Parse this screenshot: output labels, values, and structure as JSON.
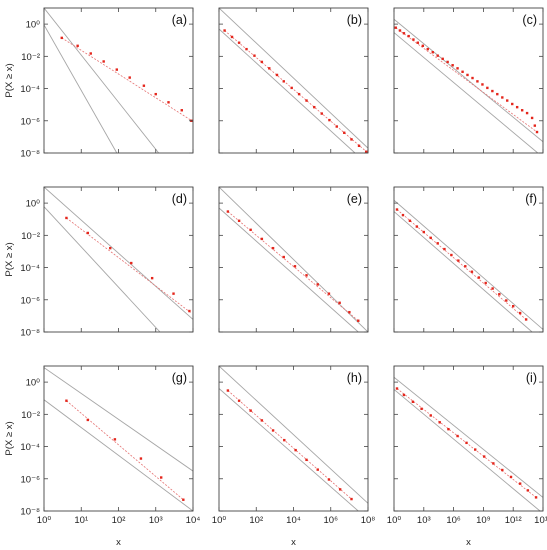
{
  "chart_data": [
    {
      "panel": "(a)",
      "type": "scatter",
      "xscale": "log",
      "yscale": "log",
      "x_exp_range": [
        0,
        4
      ],
      "y_exp_range": [
        -8,
        1
      ],
      "xticks_exp": [
        0,
        1,
        2,
        3,
        4
      ],
      "yticks_exp": [
        0,
        -2,
        -4,
        -6,
        -8
      ],
      "points": [
        {
          "x": 3,
          "y": 0.14
        },
        {
          "x": 8,
          "y": 0.045
        },
        {
          "x": 18,
          "y": 0.015
        },
        {
          "x": 40,
          "y": 0.0048
        },
        {
          "x": 90,
          "y": 0.0015
        },
        {
          "x": 200,
          "y": 0.00048
        },
        {
          "x": 480,
          "y": 0.00015
        },
        {
          "x": 1000,
          "y": 4.5e-05
        },
        {
          "x": 2200,
          "y": 1.4e-05
        },
        {
          "x": 5000,
          "y": 4.5e-06
        },
        {
          "x": 9000,
          "y": 1e-06
        }
      ],
      "fit": [
        [
          3,
          0.14
        ],
        [
          10000,
          9e-07
        ]
      ],
      "bounds": [
        [
          [
            1,
            10
          ],
          [
            1200,
            1e-08
          ]
        ],
        [
          [
            1,
            0.9
          ],
          [
            90,
            1e-08
          ]
        ]
      ],
      "ylabel": "P(X ≥ x)",
      "xlabel": ""
    },
    {
      "panel": "(b)",
      "type": "scatter",
      "xscale": "log",
      "yscale": "log",
      "x_exp_range": [
        0,
        8
      ],
      "y_exp_range": [
        -8,
        1
      ],
      "xticks_exp": [
        0,
        2,
        4,
        6,
        8
      ],
      "yticks_exp": [
        0,
        -2,
        -4,
        -6,
        -8
      ],
      "points": [
        {
          "x": 2,
          "y": 0.4
        },
        {
          "x": 5,
          "y": 0.16
        },
        {
          "x": 12,
          "y": 0.07
        },
        {
          "x": 30,
          "y": 0.028
        },
        {
          "x": 80,
          "y": 0.011
        },
        {
          "x": 200,
          "y": 0.0045
        },
        {
          "x": 500,
          "y": 0.0018
        },
        {
          "x": 1300,
          "y": 0.0007
        },
        {
          "x": 3000,
          "y": 0.00028
        },
        {
          "x": 8000,
          "y": 0.00011
        },
        {
          "x": 20000,
          "y": 4.5e-05
        },
        {
          "x": 50000,
          "y": 1.8e-05
        },
        {
          "x": 130000,
          "y": 7e-06
        },
        {
          "x": 330000,
          "y": 2.8e-06
        },
        {
          "x": 850000,
          "y": 1.1e-06
        },
        {
          "x": 2100000,
          "y": 4.4e-07
        },
        {
          "x": 5300000,
          "y": 1.8e-07
        },
        {
          "x": 13000000,
          "y": 7e-08
        },
        {
          "x": 33000000,
          "y": 2.8e-08
        },
        {
          "x": 80000000,
          "y": 1.2e-08
        }
      ],
      "fit": [
        [
          2,
          0.4
        ],
        [
          100000000,
          1e-08
        ]
      ],
      "bounds": [
        [
          [
            1,
            10
          ],
          [
            100000000,
            2e-08
          ]
        ],
        [
          [
            1,
            0.5
          ],
          [
            20000000,
            1e-08
          ]
        ]
      ],
      "ylabel": "",
      "xlabel": ""
    },
    {
      "panel": "(c)",
      "type": "scatter",
      "xscale": "log",
      "yscale": "log",
      "x_exp_range": [
        0,
        15
      ],
      "y_exp_range": [
        -8,
        1
      ],
      "xticks_exp": [
        0,
        3,
        6,
        9,
        12,
        15
      ],
      "yticks_exp": [
        0,
        -2,
        -4,
        -6,
        -8
      ],
      "points": [
        {
          "x": 1.5,
          "y": 0.6
        },
        {
          "x": 4,
          "y": 0.4
        },
        {
          "x": 10,
          "y": 0.27
        },
        {
          "x": 30,
          "y": 0.18
        },
        {
          "x": 90,
          "y": 0.11
        },
        {
          "x": 250,
          "y": 0.07
        },
        {
          "x": 800,
          "y": 0.045
        },
        {
          "x": 2500,
          "y": 0.028
        },
        {
          "x": 8000,
          "y": 0.018
        },
        {
          "x": 25000,
          "y": 0.011
        },
        {
          "x": 80000,
          "y": 0.007
        },
        {
          "x": 250000,
          "y": 0.0045
        },
        {
          "x": 800000,
          "y": 0.0028
        },
        {
          "x": 2500000,
          "y": 0.0018
        },
        {
          "x": 8000000,
          "y": 0.0011
        },
        {
          "x": 25000000,
          "y": 0.0007
        },
        {
          "x": 80000000,
          "y": 0.00045
        },
        {
          "x": 250000000,
          "y": 0.00028
        },
        {
          "x": 800000000,
          "y": 0.00018
        },
        {
          "x": 2500000000,
          "y": 0.00011
        },
        {
          "x": 8000000000,
          "y": 7e-05
        },
        {
          "x": 25000000000,
          "y": 4.5e-05
        },
        {
          "x": 80000000000,
          "y": 2.8e-05
        },
        {
          "x": 250000000000,
          "y": 1.8e-05
        },
        {
          "x": 800000000000,
          "y": 1.1e-05
        },
        {
          "x": 2500000000000,
          "y": 7e-06
        },
        {
          "x": 8000000000000,
          "y": 4.5e-06
        },
        {
          "x": 25000000000000,
          "y": 3e-06
        },
        {
          "x": 80000000000000,
          "y": 1.5e-06
        },
        {
          "x": 150000000000000,
          "y": 5e-07
        },
        {
          "x": 250000000000000,
          "y": 2e-07
        }
      ],
      "fit": [
        [
          1.5,
          0.6
        ],
        [
          250000000000000,
          2e-07
        ]
      ],
      "bounds": [
        [
          [
            1,
            2
          ],
          [
            1000000000000000,
            5e-08
          ]
        ],
        [
          [
            1,
            0.3
          ],
          [
            300000000000000,
            1e-08
          ]
        ]
      ],
      "ylabel": "",
      "xlabel": ""
    },
    {
      "panel": "(d)",
      "type": "scatter",
      "xscale": "log",
      "yscale": "log",
      "x_exp_range": [
        0,
        4
      ],
      "y_exp_range": [
        -8,
        1
      ],
      "xticks_exp": [
        0,
        1,
        2,
        3,
        4
      ],
      "yticks_exp": [
        0,
        -2,
        -4,
        -6,
        -8
      ],
      "points": [
        {
          "x": 4,
          "y": 0.12
        },
        {
          "x": 15,
          "y": 0.014
        },
        {
          "x": 60,
          "y": 0.0016
        },
        {
          "x": 220,
          "y": 0.00019
        },
        {
          "x": 800,
          "y": 2.2e-05
        },
        {
          "x": 3000,
          "y": 2.4e-06
        },
        {
          "x": 8000,
          "y": 2e-07
        }
      ],
      "fit": [
        [
          4,
          0.12
        ],
        [
          9000,
          1.5e-07
        ]
      ],
      "bounds": [
        [
          [
            1,
            10
          ],
          [
            10000,
            6e-08
          ]
        ],
        [
          [
            1,
            0.6
          ],
          [
            1300,
            1e-08
          ]
        ]
      ],
      "ylabel": "P(X ≥ x)",
      "xlabel": ""
    },
    {
      "panel": "(e)",
      "type": "scatter",
      "xscale": "log",
      "yscale": "log",
      "x_exp_range": [
        0,
        8
      ],
      "y_exp_range": [
        -8,
        1
      ],
      "xticks_exp": [
        0,
        2,
        4,
        6,
        8
      ],
      "yticks_exp": [
        0,
        -2,
        -4,
        -6,
        -8
      ],
      "points": [
        {
          "x": 3,
          "y": 0.3
        },
        {
          "x": 12,
          "y": 0.08
        },
        {
          "x": 50,
          "y": 0.022
        },
        {
          "x": 200,
          "y": 0.006
        },
        {
          "x": 800,
          "y": 0.0016
        },
        {
          "x": 3000,
          "y": 0.00045
        },
        {
          "x": 12000,
          "y": 0.00012
        },
        {
          "x": 50000,
          "y": 3.3e-05
        },
        {
          "x": 200000,
          "y": 9e-06
        },
        {
          "x": 800000,
          "y": 2.4e-06
        },
        {
          "x": 3000000,
          "y": 6.5e-07
        },
        {
          "x": 10000000,
          "y": 1.7e-07
        },
        {
          "x": 30000000,
          "y": 5e-08
        }
      ],
      "fit": [
        [
          3,
          0.3
        ],
        [
          30000000,
          5e-08
        ]
      ],
      "bounds": [
        [
          [
            1,
            10
          ],
          [
            100000000,
            1e-08
          ]
        ],
        [
          [
            1,
            0.5
          ],
          [
            30000000,
            1e-08
          ]
        ]
      ],
      "ylabel": "",
      "xlabel": ""
    },
    {
      "panel": "(f)",
      "type": "scatter",
      "xscale": "log",
      "yscale": "log",
      "x_exp_range": [
        0,
        15
      ],
      "y_exp_range": [
        -8,
        1
      ],
      "xticks_exp": [
        0,
        3,
        6,
        9,
        12,
        15
      ],
      "yticks_exp": [
        0,
        -2,
        -4,
        -6,
        -8
      ],
      "points": [
        {
          "x": 2,
          "y": 0.4
        },
        {
          "x": 8,
          "y": 0.18
        },
        {
          "x": 40,
          "y": 0.08
        },
        {
          "x": 200,
          "y": 0.035
        },
        {
          "x": 1000,
          "y": 0.016
        },
        {
          "x": 5000,
          "y": 0.007
        },
        {
          "x": 25000,
          "y": 0.0032
        },
        {
          "x": 120000,
          "y": 0.0014
        },
        {
          "x": 600000,
          "y": 0.0006
        },
        {
          "x": 3000000,
          "y": 0.00027
        },
        {
          "x": 15000000,
          "y": 0.00012
        },
        {
          "x": 70000000,
          "y": 5.5e-05
        },
        {
          "x": 350000000,
          "y": 2.4e-05
        },
        {
          "x": 1700000000,
          "y": 1.1e-05
        },
        {
          "x": 8500000000,
          "y": 5e-06
        },
        {
          "x": 40000000000,
          "y": 2.2e-06
        },
        {
          "x": 200000000000,
          "y": 9e-07
        },
        {
          "x": 1000000000000,
          "y": 4e-07
        },
        {
          "x": 5000000000000,
          "y": 1.5e-07
        },
        {
          "x": 20000000000000,
          "y": 6e-08
        }
      ],
      "fit": [
        [
          2,
          0.4
        ],
        [
          20000000000000,
          6e-08
        ]
      ],
      "bounds": [
        [
          [
            1,
            1.5
          ],
          [
            2000000000000000,
            1e-08
          ]
        ],
        [
          [
            1,
            0.3
          ],
          [
            80000000000000,
            1e-08
          ]
        ]
      ],
      "ylabel": "",
      "xlabel": ""
    },
    {
      "panel": "(g)",
      "type": "scatter",
      "xscale": "log",
      "yscale": "log",
      "x_exp_range": [
        0,
        4
      ],
      "y_exp_range": [
        -8,
        1
      ],
      "xticks_exp": [
        0,
        1,
        2,
        3,
        4
      ],
      "yticks_exp": [
        0,
        -2,
        -4,
        -6,
        -8
      ],
      "points": [
        {
          "x": 4,
          "y": 0.07
        },
        {
          "x": 15,
          "y": 0.0045
        },
        {
          "x": 80,
          "y": 0.00028
        },
        {
          "x": 400,
          "y": 1.8e-05
        },
        {
          "x": 1400,
          "y": 1.2e-06
        },
        {
          "x": 5500,
          "y": 5e-08
        }
      ],
      "fit": [
        [
          4,
          0.07
        ],
        [
          5500,
          5e-08
        ]
      ],
      "bounds": [
        [
          [
            1,
            8
          ],
          [
            10000,
            3e-06
          ]
        ],
        [
          [
            1,
            0.08
          ],
          [
            10000,
            1e-08
          ]
        ]
      ],
      "ylabel": "P(X ≥ x)",
      "xlabel": "x"
    },
    {
      "panel": "(h)",
      "type": "scatter",
      "xscale": "log",
      "yscale": "log",
      "x_exp_range": [
        0,
        8
      ],
      "y_exp_range": [
        -8,
        1
      ],
      "xticks_exp": [
        0,
        2,
        4,
        6,
        8
      ],
      "yticks_exp": [
        0,
        -2,
        -4,
        -6,
        -8
      ],
      "points": [
        {
          "x": 3,
          "y": 0.3
        },
        {
          "x": 12,
          "y": 0.07
        },
        {
          "x": 50,
          "y": 0.017
        },
        {
          "x": 200,
          "y": 0.0042
        },
        {
          "x": 800,
          "y": 0.001
        },
        {
          "x": 3200,
          "y": 0.00025
        },
        {
          "x": 13000,
          "y": 6e-05
        },
        {
          "x": 50000,
          "y": 1.5e-05
        },
        {
          "x": 200000,
          "y": 3.7e-06
        },
        {
          "x": 800000,
          "y": 9e-07
        },
        {
          "x": 3200000,
          "y": 2.2e-07
        },
        {
          "x": 13000000,
          "y": 5.5e-08
        }
      ],
      "fit": [
        [
          3,
          0.3
        ],
        [
          13000000,
          5.5e-08
        ]
      ],
      "bounds": [
        [
          [
            1,
            10
          ],
          [
            100000000,
            3e-08
          ]
        ],
        [
          [
            1,
            0.4
          ],
          [
            30000000,
            1e-08
          ]
        ]
      ],
      "ylabel": "",
      "xlabel": "x"
    },
    {
      "panel": "(i)",
      "type": "scatter",
      "xscale": "log",
      "yscale": "log",
      "x_exp_range": [
        0,
        15
      ],
      "y_exp_range": [
        -8,
        1
      ],
      "xticks_exp": [
        0,
        3,
        6,
        9,
        12,
        15
      ],
      "yticks_exp": [
        0,
        -2,
        -4,
        -6,
        -8
      ],
      "points": [
        {
          "x": 2,
          "y": 0.4
        },
        {
          "x": 10,
          "y": 0.16
        },
        {
          "x": 80,
          "y": 0.06
        },
        {
          "x": 600,
          "y": 0.022
        },
        {
          "x": 5000,
          "y": 0.0085
        },
        {
          "x": 40000,
          "y": 0.0032
        },
        {
          "x": 300000,
          "y": 0.0012
        },
        {
          "x": 2500000,
          "y": 0.00045
        },
        {
          "x": 20000000,
          "y": 0.00017
        },
        {
          "x": 150000000,
          "y": 6.5e-05
        },
        {
          "x": 1200000000,
          "y": 2.4e-05
        },
        {
          "x": 10000000000,
          "y": 9e-06
        },
        {
          "x": 80000000000,
          "y": 3.5e-06
        },
        {
          "x": 600000000000,
          "y": 1.3e-06
        },
        {
          "x": 5000000000000,
          "y": 5e-07
        },
        {
          "x": 30000000000000,
          "y": 1.9e-07
        },
        {
          "x": 200000000000000,
          "y": 7e-08
        }
      ],
      "fit": [
        [
          2,
          0.4
        ],
        [
          200000000000000,
          7e-08
        ]
      ],
      "bounds": [
        [
          [
            1,
            2
          ],
          [
            3000000000000000,
            4e-08
          ]
        ],
        [
          [
            1,
            0.35
          ],
          [
            500000000000000,
            1e-08
          ]
        ]
      ],
      "ylabel": "",
      "xlabel": "x"
    }
  ]
}
